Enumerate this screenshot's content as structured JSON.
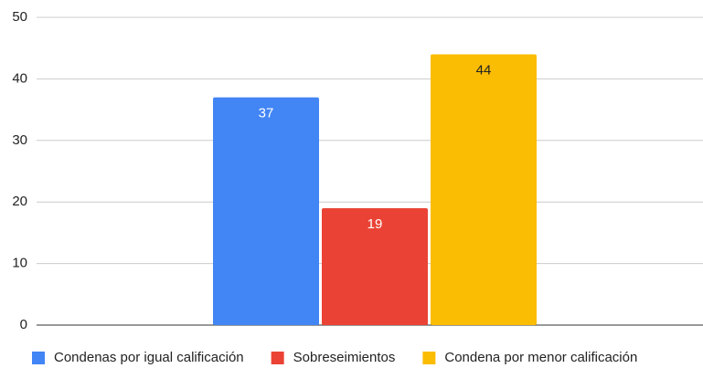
{
  "chart_data": {
    "type": "bar",
    "categories": [
      null
    ],
    "series": [
      {
        "name": "Condenas por igual calificación",
        "color": "#4285f4",
        "values": [
          37
        ]
      },
      {
        "name": "Sobreseimientos",
        "color": "#ea4335",
        "values": [
          19
        ]
      },
      {
        "name": "Condena por menor calificación",
        "color": "#fbbc04",
        "values": [
          44
        ]
      }
    ],
    "ylim": [
      0,
      50
    ],
    "yticks": [
      0,
      10,
      20,
      30,
      40,
      50
    ],
    "grid": true,
    "legend": "bottom"
  }
}
